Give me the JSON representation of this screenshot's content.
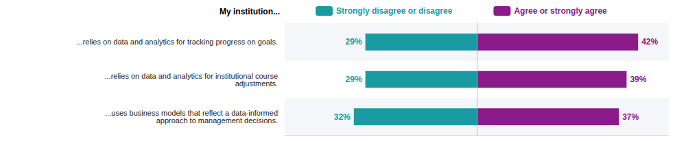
{
  "chart_data": {
    "type": "bar",
    "orientation": "horizontal",
    "title": "My institution...",
    "categories": [
      "...relies on data and analytics for tracking progress on goals.",
      "...relies on data and analytics for institutional course\nadjustments.",
      "...uses business models that reflect a data-informed\napproach to management decisions."
    ],
    "series": [
      {
        "name": "Strongly disagree or disagree",
        "color": "#1a9ba1",
        "values": [
          29,
          29,
          32
        ],
        "value_labels": [
          "29%",
          "29%",
          "32%"
        ]
      },
      {
        "name": "Agree or strongly agree",
        "color": "#8b1a8b",
        "values": [
          42,
          39,
          37
        ],
        "value_labels": [
          "42%",
          "39%",
          "37%"
        ]
      }
    ],
    "xlim": [
      -50,
      50
    ],
    "data_labels": true,
    "tick_labels": "y",
    "grid": false,
    "legend": "top"
  }
}
